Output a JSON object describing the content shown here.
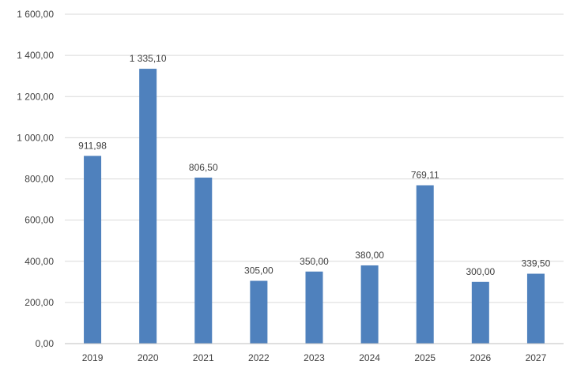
{
  "chart_data": {
    "type": "bar",
    "categories": [
      "2019",
      "2020",
      "2021",
      "2022",
      "2023",
      "2024",
      "2025",
      "2026",
      "2027"
    ],
    "values": [
      911.98,
      1335.1,
      806.5,
      305.0,
      350.0,
      380.0,
      769.11,
      300.0,
      339.5
    ],
    "data_labels": [
      "911,98",
      "1 335,10",
      "806,50",
      "305,00",
      "350,00",
      "380,00",
      "769,11",
      "300,00",
      "339,50"
    ],
    "y_ticks": [
      0,
      200,
      400,
      600,
      800,
      1000,
      1200,
      1400,
      1600
    ],
    "y_tick_labels": [
      "0,00",
      "200,00",
      "400,00",
      "600,00",
      "800,00",
      "1 000,00",
      "1 200,00",
      "1 400,00",
      "1 600,00"
    ],
    "ylim": [
      0,
      1600
    ],
    "title": "",
    "xlabel": "",
    "ylabel": "",
    "grid": true,
    "legend": "none",
    "colors": {
      "bar": "#4f81bd"
    }
  }
}
